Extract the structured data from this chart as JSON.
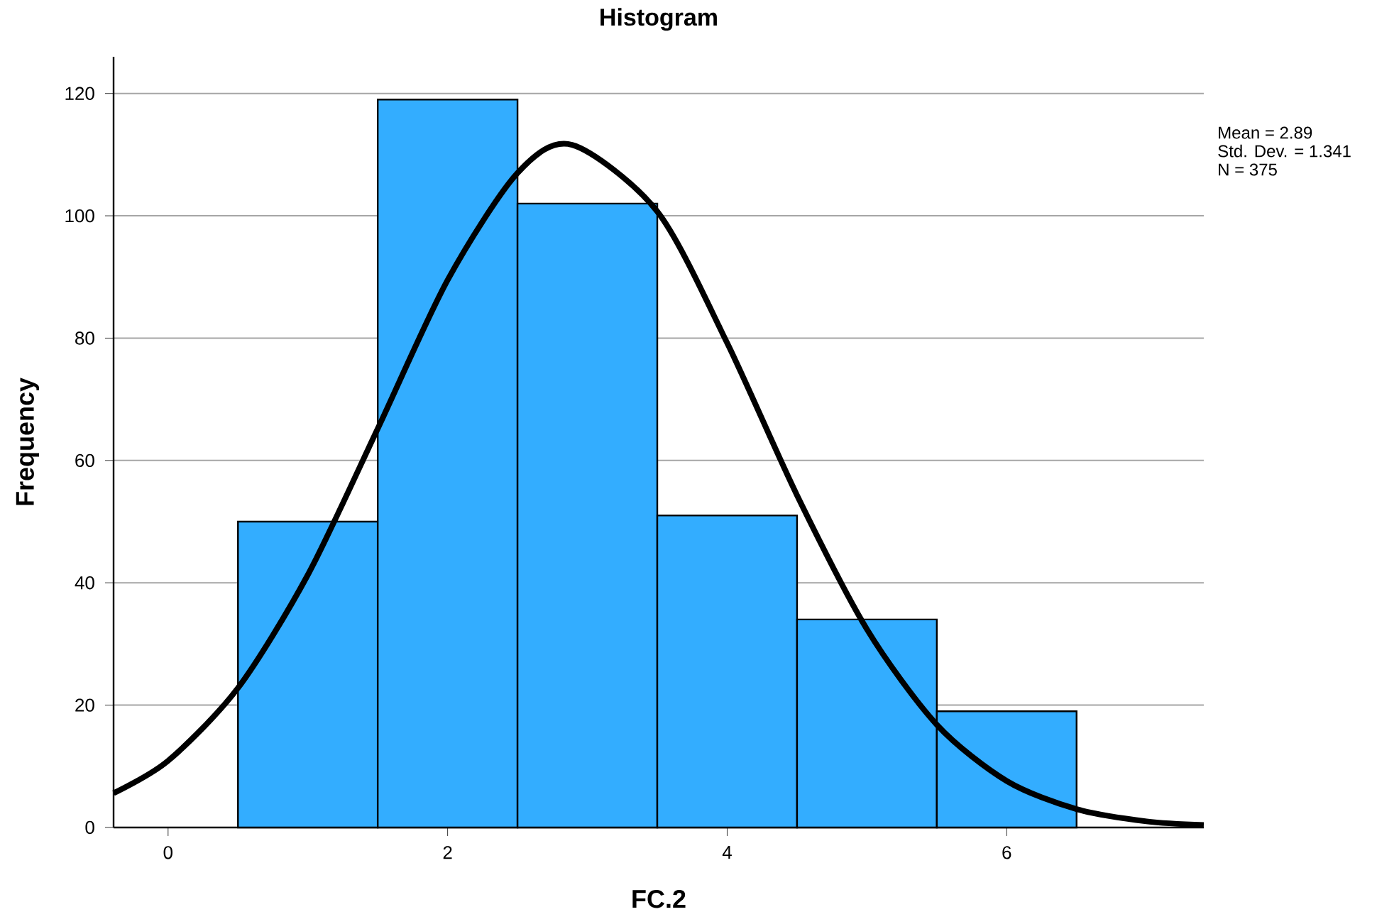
{
  "chart_data": {
    "type": "histogram",
    "title": "Histogram",
    "xlabel": "FC.2",
    "ylabel": "Frequency",
    "bins": [
      0.5,
      1.5,
      2.5,
      3.5,
      4.5,
      5.5,
      6.5
    ],
    "series": [
      {
        "color": "#33adff",
        "values": [
          50,
          119,
          102,
          51,
          34,
          19
        ]
      },
      {
        "type": "line",
        "color": "#000000",
        "x": [
          -0.39,
          0,
          0.5,
          1,
          1.5,
          2,
          2.5,
          2.89,
          3.5,
          4,
          4.5,
          5,
          5.5,
          6,
          6.5,
          7,
          7.41
        ],
        "values": [
          5.6,
          10.9,
          22.8,
          41.3,
          65.2,
          89.5,
          107,
          111.6,
          100.7,
          79.2,
          54.3,
          32.4,
          16.8,
          7.6,
          3,
          1,
          0.4
        ]
      }
    ],
    "xlim": [
      -0.39,
      7.41
    ],
    "ylim": [
      0,
      126
    ],
    "xticks": [
      0,
      2,
      4,
      6
    ],
    "yticks": [
      0,
      20,
      40,
      60,
      80,
      100,
      120
    ],
    "grid": "y",
    "annotations": [
      "Mean = 2.89",
      "Std. Dev. = 1.341",
      "N = 375"
    ]
  }
}
